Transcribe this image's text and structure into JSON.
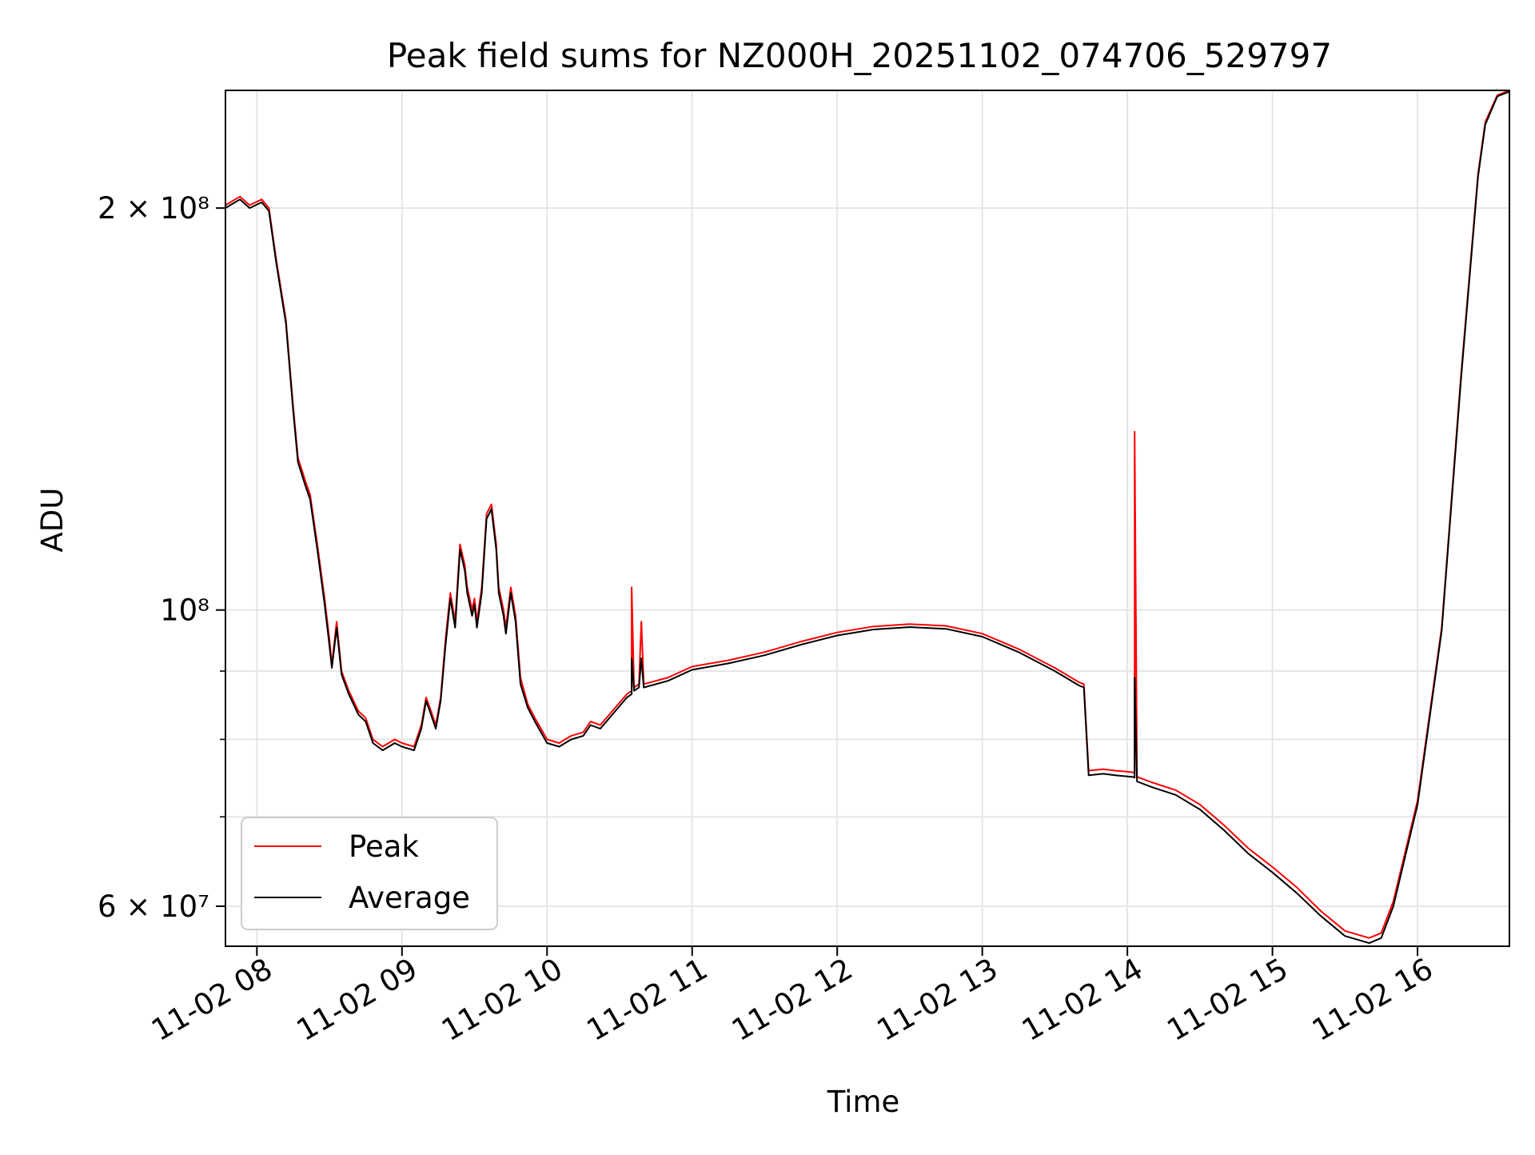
{
  "chart_data": {
    "type": "line",
    "title": "Peak field sums for NZ000H_20251102_074706_529797",
    "xlabel": "Time",
    "ylabel": "ADU",
    "yscale": "log",
    "xlim": [
      "2025-11-02 07:47",
      "2025-11-02 16:38"
    ],
    "ylim": [
      56000000,
      245000000
    ],
    "x_ticks": [
      {
        "x": "2025-11-02 08:00",
        "label": "11-02 08"
      },
      {
        "x": "2025-11-02 09:00",
        "label": "11-02 09"
      },
      {
        "x": "2025-11-02 10:00",
        "label": "11-02 10"
      },
      {
        "x": "2025-11-02 11:00",
        "label": "11-02 11"
      },
      {
        "x": "2025-11-02 12:00",
        "label": "11-02 12"
      },
      {
        "x": "2025-11-02 13:00",
        "label": "11-02 13"
      },
      {
        "x": "2025-11-02 14:00",
        "label": "11-02 14"
      },
      {
        "x": "2025-11-02 15:00",
        "label": "11-02 15"
      },
      {
        "x": "2025-11-02 16:00",
        "label": "11-02 16"
      }
    ],
    "y_ticks": [
      {
        "y": 200000000,
        "label": "2 × 10⁸"
      },
      {
        "y": 100000000,
        "label": "10⁸"
      },
      {
        "y": 60000000,
        "label": "6 × 10⁷"
      }
    ],
    "y_minor_ticks": [
      70000000,
      80000000,
      90000000
    ],
    "grid": true,
    "legend": "lower-left",
    "series": [
      {
        "name": "Peak",
        "color": "#ff0000",
        "points": [
          [
            "2025-11-02 07:47",
            201000000
          ],
          [
            "2025-11-02 07:53",
            204000000
          ],
          [
            "2025-11-02 07:57",
            201000000
          ],
          [
            "2025-11-02 08:02",
            203000000
          ],
          [
            "2025-11-02 08:05",
            200000000
          ],
          [
            "2025-11-02 08:08",
            183000000
          ],
          [
            "2025-11-02 08:12",
            165000000
          ],
          [
            "2025-11-02 08:15",
            142000000
          ],
          [
            "2025-11-02 08:17",
            130000000
          ],
          [
            "2025-11-02 08:20",
            125000000
          ],
          [
            "2025-11-02 08:22",
            122000000
          ],
          [
            "2025-11-02 08:25",
            112000000
          ],
          [
            "2025-11-02 08:28",
            102000000
          ],
          [
            "2025-11-02 08:30",
            95000000
          ],
          [
            "2025-11-02 08:31",
            91000000
          ],
          [
            "2025-11-02 08:33",
            98000000
          ],
          [
            "2025-11-02 08:35",
            90000000
          ],
          [
            "2025-11-02 08:38",
            87000000
          ],
          [
            "2025-11-02 08:42",
            84000000
          ],
          [
            "2025-11-02 08:45",
            83000000
          ],
          [
            "2025-11-02 08:48",
            80000000
          ],
          [
            "2025-11-02 08:52",
            79000000
          ],
          [
            "2025-11-02 08:57",
            80000000
          ],
          [
            "2025-11-02 09:00",
            79500000
          ],
          [
            "2025-11-02 09:05",
            79000000
          ],
          [
            "2025-11-02 09:08",
            82000000
          ],
          [
            "2025-11-02 09:10",
            86000000
          ],
          [
            "2025-11-02 09:12",
            84000000
          ],
          [
            "2025-11-02 09:14",
            82000000
          ],
          [
            "2025-11-02 09:16",
            86000000
          ],
          [
            "2025-11-02 09:18",
            95000000
          ],
          [
            "2025-11-02 09:20",
            103000000
          ],
          [
            "2025-11-02 09:22",
            98000000
          ],
          [
            "2025-11-02 09:24",
            112000000
          ],
          [
            "2025-11-02 09:26",
            108000000
          ],
          [
            "2025-11-02 09:27",
            104000000
          ],
          [
            "2025-11-02 09:29",
            100000000
          ],
          [
            "2025-11-02 09:30",
            102000000
          ],
          [
            "2025-11-02 09:31",
            98000000
          ],
          [
            "2025-11-02 09:33",
            104000000
          ],
          [
            "2025-11-02 09:35",
            118000000
          ],
          [
            "2025-11-02 09:37",
            120000000
          ],
          [
            "2025-11-02 09:39",
            112000000
          ],
          [
            "2025-11-02 09:40",
            104000000
          ],
          [
            "2025-11-02 09:42",
            100000000
          ],
          [
            "2025-11-02 09:43",
            97000000
          ],
          [
            "2025-11-02 09:45",
            104000000
          ],
          [
            "2025-11-02 09:47",
            99000000
          ],
          [
            "2025-11-02 09:49",
            89000000
          ],
          [
            "2025-11-02 09:52",
            85000000
          ],
          [
            "2025-11-02 09:55",
            83000000
          ],
          [
            "2025-11-02 10:00",
            80000000
          ],
          [
            "2025-11-02 10:05",
            79500000
          ],
          [
            "2025-11-02 10:10",
            80500000
          ],
          [
            "2025-11-02 10:15",
            81000000
          ],
          [
            "2025-11-02 10:18",
            82500000
          ],
          [
            "2025-11-02 10:22",
            82000000
          ],
          [
            "2025-11-02 10:27",
            84000000
          ],
          [
            "2025-11-02 10:33",
            86500000
          ],
          [
            "2025-11-02 10:35",
            87000000
          ],
          [
            "2025-11-02 10:35",
            104000000
          ],
          [
            "2025-11-02 10:36",
            87500000
          ],
          [
            "2025-11-02 10:38",
            88000000
          ],
          [
            "2025-11-02 10:39",
            98000000
          ],
          [
            "2025-11-02 10:40",
            88000000
          ],
          [
            "2025-11-02 10:50",
            89000000
          ],
          [
            "2025-11-02 11:00",
            90700000
          ],
          [
            "2025-11-02 11:15",
            91700000
          ],
          [
            "2025-11-02 11:30",
            93000000
          ],
          [
            "2025-11-02 11:45",
            94700000
          ],
          [
            "2025-11-02 12:00",
            96200000
          ],
          [
            "2025-11-02 12:15",
            97200000
          ],
          [
            "2025-11-02 12:30",
            97600000
          ],
          [
            "2025-11-02 12:45",
            97300000
          ],
          [
            "2025-11-02 13:00",
            96000000
          ],
          [
            "2025-11-02 13:15",
            93500000
          ],
          [
            "2025-11-02 13:30",
            90500000
          ],
          [
            "2025-11-02 13:40",
            88300000
          ],
          [
            "2025-11-02 13:42",
            88000000
          ],
          [
            "2025-11-02 13:44",
            75800000
          ],
          [
            "2025-11-02 13:50",
            76000000
          ],
          [
            "2025-11-02 13:55",
            75800000
          ],
          [
            "2025-11-02 14:02",
            75600000
          ],
          [
            "2025-11-02 14:03",
            75500000
          ],
          [
            "2025-11-02 14:03",
            136000000
          ],
          [
            "2025-11-02 14:04",
            75000000
          ],
          [
            "2025-11-02 14:10",
            74300000
          ],
          [
            "2025-11-02 14:20",
            73300000
          ],
          [
            "2025-11-02 14:30",
            71500000
          ],
          [
            "2025-11-02 14:40",
            69000000
          ],
          [
            "2025-11-02 14:50",
            66300000
          ],
          [
            "2025-11-02 15:00",
            64200000
          ],
          [
            "2025-11-02 15:10",
            62000000
          ],
          [
            "2025-11-02 15:20",
            59500000
          ],
          [
            "2025-11-02 15:30",
            57500000
          ],
          [
            "2025-11-02 15:40",
            56800000
          ],
          [
            "2025-11-02 15:45",
            57300000
          ],
          [
            "2025-11-02 15:50",
            60500000
          ],
          [
            "2025-11-02 16:00",
            72000000
          ],
          [
            "2025-11-02 16:10",
            97000000
          ],
          [
            "2025-11-02 16:18",
            150000000
          ],
          [
            "2025-11-02 16:25",
            212000000
          ],
          [
            "2025-11-02 16:28",
            232000000
          ],
          [
            "2025-11-02 16:33",
            243000000
          ],
          [
            "2025-11-02 16:38",
            245000000
          ]
        ]
      },
      {
        "name": "Average",
        "color": "#000000",
        "points": [
          [
            "2025-11-02 07:47",
            200000000
          ],
          [
            "2025-11-02 07:53",
            203000000
          ],
          [
            "2025-11-02 07:57",
            200000000
          ],
          [
            "2025-11-02 08:02",
            202000000
          ],
          [
            "2025-11-02 08:05",
            199000000
          ],
          [
            "2025-11-02 08:08",
            182000000
          ],
          [
            "2025-11-02 08:12",
            164000000
          ],
          [
            "2025-11-02 08:15",
            141000000
          ],
          [
            "2025-11-02 08:17",
            129000000
          ],
          [
            "2025-11-02 08:20",
            124000000
          ],
          [
            "2025-11-02 08:22",
            121000000
          ],
          [
            "2025-11-02 08:25",
            111000000
          ],
          [
            "2025-11-02 08:28",
            101000000
          ],
          [
            "2025-11-02 08:30",
            94000000
          ],
          [
            "2025-11-02 08:31",
            90500000
          ],
          [
            "2025-11-02 08:33",
            97000000
          ],
          [
            "2025-11-02 08:35",
            89500000
          ],
          [
            "2025-11-02 08:38",
            86500000
          ],
          [
            "2025-11-02 08:42",
            83500000
          ],
          [
            "2025-11-02 08:45",
            82500000
          ],
          [
            "2025-11-02 08:48",
            79500000
          ],
          [
            "2025-11-02 08:52",
            78500000
          ],
          [
            "2025-11-02 08:57",
            79500000
          ],
          [
            "2025-11-02 09:00",
            79000000
          ],
          [
            "2025-11-02 09:05",
            78500000
          ],
          [
            "2025-11-02 09:08",
            81500000
          ],
          [
            "2025-11-02 09:10",
            85500000
          ],
          [
            "2025-11-02 09:12",
            83500000
          ],
          [
            "2025-11-02 09:14",
            81500000
          ],
          [
            "2025-11-02 09:16",
            85500000
          ],
          [
            "2025-11-02 09:18",
            94000000
          ],
          [
            "2025-11-02 09:20",
            102000000
          ],
          [
            "2025-11-02 09:22",
            97000000
          ],
          [
            "2025-11-02 09:24",
            111000000
          ],
          [
            "2025-11-02 09:26",
            107000000
          ],
          [
            "2025-11-02 09:27",
            103000000
          ],
          [
            "2025-11-02 09:29",
            99000000
          ],
          [
            "2025-11-02 09:30",
            101000000
          ],
          [
            "2025-11-02 09:31",
            97000000
          ],
          [
            "2025-11-02 09:33",
            103000000
          ],
          [
            "2025-11-02 09:35",
            117000000
          ],
          [
            "2025-11-02 09:37",
            119000000
          ],
          [
            "2025-11-02 09:39",
            111000000
          ],
          [
            "2025-11-02 09:40",
            103000000
          ],
          [
            "2025-11-02 09:42",
            99000000
          ],
          [
            "2025-11-02 09:43",
            96000000
          ],
          [
            "2025-11-02 09:45",
            103000000
          ],
          [
            "2025-11-02 09:47",
            98000000
          ],
          [
            "2025-11-02 09:49",
            88000000
          ],
          [
            "2025-11-02 09:52",
            84500000
          ],
          [
            "2025-11-02 09:55",
            82500000
          ],
          [
            "2025-11-02 10:00",
            79500000
          ],
          [
            "2025-11-02 10:05",
            79000000
          ],
          [
            "2025-11-02 10:10",
            80000000
          ],
          [
            "2025-11-02 10:15",
            80500000
          ],
          [
            "2025-11-02 10:18",
            82000000
          ],
          [
            "2025-11-02 10:22",
            81500000
          ],
          [
            "2025-11-02 10:27",
            83500000
          ],
          [
            "2025-11-02 10:33",
            86000000
          ],
          [
            "2025-11-02 10:35",
            86500000
          ],
          [
            "2025-11-02 10:35",
            92000000
          ],
          [
            "2025-11-02 10:36",
            87000000
          ],
          [
            "2025-11-02 10:38",
            87500000
          ],
          [
            "2025-11-02 10:39",
            92000000
          ],
          [
            "2025-11-02 10:40",
            87500000
          ],
          [
            "2025-11-02 10:50",
            88500000
          ],
          [
            "2025-11-02 11:00",
            90200000
          ],
          [
            "2025-11-02 11:15",
            91200000
          ],
          [
            "2025-11-02 11:30",
            92500000
          ],
          [
            "2025-11-02 11:45",
            94200000
          ],
          [
            "2025-11-02 12:00",
            95700000
          ],
          [
            "2025-11-02 12:15",
            96700000
          ],
          [
            "2025-11-02 12:30",
            97100000
          ],
          [
            "2025-11-02 12:45",
            96800000
          ],
          [
            "2025-11-02 13:00",
            95500000
          ],
          [
            "2025-11-02 13:15",
            93000000
          ],
          [
            "2025-11-02 13:30",
            90000000
          ],
          [
            "2025-11-02 13:40",
            87800000
          ],
          [
            "2025-11-02 13:42",
            87500000
          ],
          [
            "2025-11-02 13:44",
            75200000
          ],
          [
            "2025-11-02 13:50",
            75400000
          ],
          [
            "2025-11-02 13:55",
            75200000
          ],
          [
            "2025-11-02 14:02",
            75000000
          ],
          [
            "2025-11-02 14:03",
            74900000
          ],
          [
            "2025-11-02 14:03",
            89000000
          ],
          [
            "2025-11-02 14:04",
            74400000
          ],
          [
            "2025-11-02 14:10",
            73700000
          ],
          [
            "2025-11-02 14:20",
            72700000
          ],
          [
            "2025-11-02 14:30",
            70900000
          ],
          [
            "2025-11-02 14:40",
            68400000
          ],
          [
            "2025-11-02 14:50",
            65700000
          ],
          [
            "2025-11-02 15:00",
            63600000
          ],
          [
            "2025-11-02 15:10",
            61400000
          ],
          [
            "2025-11-02 15:20",
            59000000
          ],
          [
            "2025-11-02 15:30",
            57000000
          ],
          [
            "2025-11-02 15:40",
            56300000
          ],
          [
            "2025-11-02 15:45",
            56800000
          ],
          [
            "2025-11-02 15:50",
            60000000
          ],
          [
            "2025-11-02 16:00",
            71500000
          ],
          [
            "2025-11-02 16:10",
            96500000
          ],
          [
            "2025-11-02 16:18",
            149000000
          ],
          [
            "2025-11-02 16:25",
            211000000
          ],
          [
            "2025-11-02 16:28",
            231000000
          ],
          [
            "2025-11-02 16:33",
            242500000
          ],
          [
            "2025-11-02 16:38",
            244500000
          ]
        ]
      }
    ]
  }
}
